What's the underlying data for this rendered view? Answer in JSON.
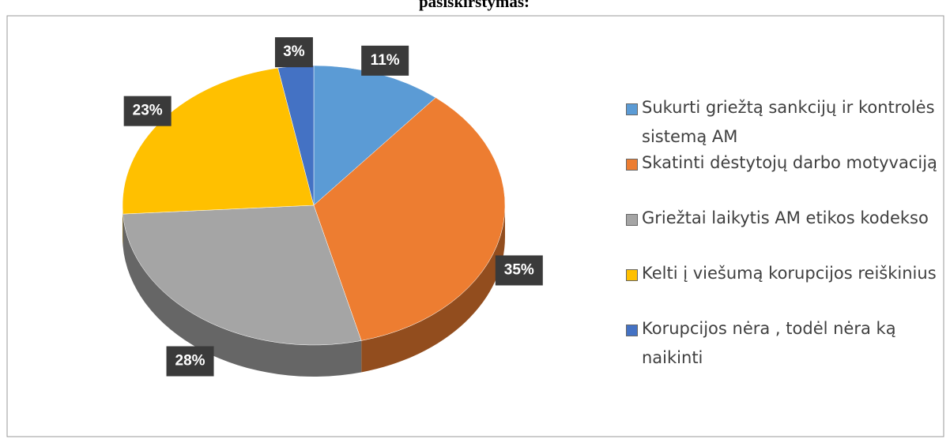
{
  "chart_data": {
    "type": "pie",
    "title": "pasiskirstymas:",
    "categories": [
      "Sukurti griežtą sankcijų ir kontrolės sistemą AM",
      "Skatinti dėstytojų darbo motyvaciją",
      "Griežtai laikytis AM  etikos kodekso",
      "Kelti į viešumą korupcijos reiškinius",
      "Korupcijos nėra , todėl nėra ką naikinti"
    ],
    "values": [
      11,
      35,
      28,
      23,
      3
    ],
    "value_labels": [
      "11%",
      "35%",
      "28%",
      "23%",
      "3%"
    ],
    "colors": [
      "#5b9bd5",
      "#ed7d31",
      "#a5a5a5",
      "#ffc000",
      "#4472c4"
    ],
    "legend": "right"
  }
}
